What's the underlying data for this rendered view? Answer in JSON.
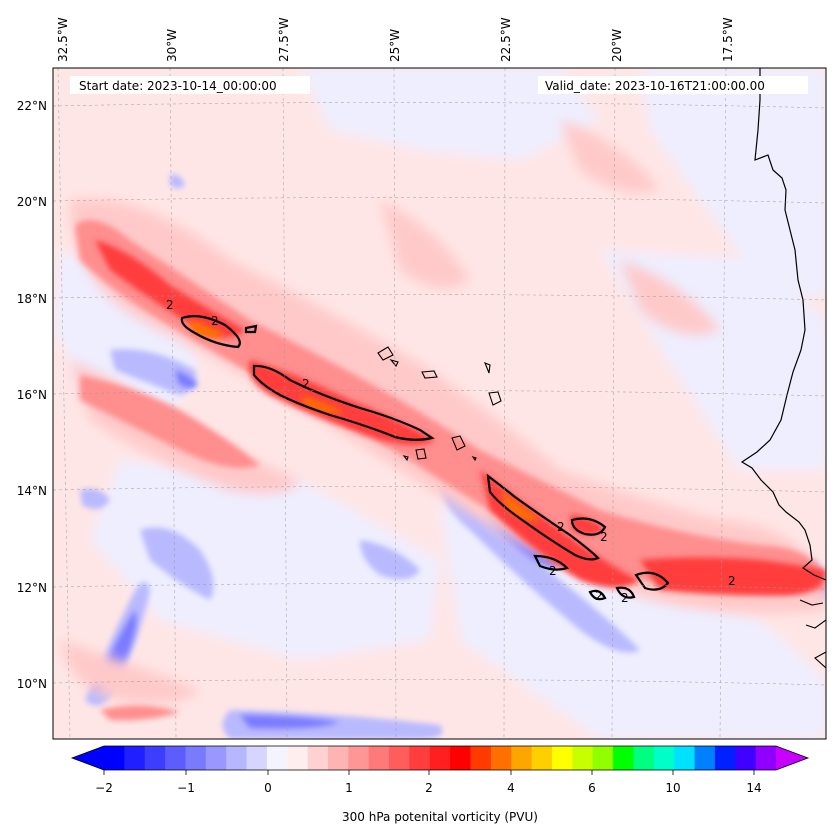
{
  "map": {
    "start_date_text": "Start date: 2023-10-14_00:00:00",
    "valid_date_text": "Valid_date: 2023-10-16T21:00:00.00",
    "lon_ticks": [
      "32.5°W",
      "30°W",
      "27.5°W",
      "25°W",
      "22.5°W",
      "20°W",
      "17.5°W"
    ],
    "lat_ticks": [
      "22°N",
      "20°N",
      "18°N",
      "16°N",
      "14°N",
      "12°N",
      "10°N"
    ],
    "contour_labels": [
      "2",
      "2",
      "2",
      "2",
      "2",
      "2",
      "2",
      "2",
      "2"
    ],
    "field_colors": {
      "background": "#ffe6e6",
      "light_red": "#ffc9c9",
      "mid_red": "#ff8e8e",
      "strong_red": "#ff4b4b",
      "core_red": "#ff1b1b",
      "core_orange": "#ff6f00",
      "light_blue": "#e6e6ff",
      "mid_blue": "#b3b3ff",
      "strong_blue": "#7a7aff",
      "coast": "#000000",
      "contour": "#000000"
    }
  },
  "colorbar": {
    "label": "300 hPa potenital vorticity (PVU)",
    "tick_labels": [
      "−2",
      "−1",
      "0",
      "1",
      "2",
      "4",
      "6",
      "10",
      "14"
    ],
    "colors": [
      "#0000ff",
      "#1f1fff",
      "#3d3dff",
      "#5c5cff",
      "#7a7aff",
      "#9898ff",
      "#b7b7ff",
      "#d5d5ff",
      "#f4f4ff",
      "#ffeeee",
      "#ffd1d1",
      "#ffb4b4",
      "#ff9696",
      "#ff7979",
      "#ff5c5c",
      "#ff3d3d",
      "#ff1f1f",
      "#ff0000",
      "#ff3b00",
      "#ff7000",
      "#ffa500",
      "#ffd000",
      "#ffff00",
      "#c8ff00",
      "#90ff00",
      "#00ff00",
      "#00ff80",
      "#00ffc8",
      "#00e0ff",
      "#0080ff",
      "#0020ff",
      "#4000ff",
      "#9000ff"
    ],
    "under_color": "#0000ff",
    "over_color": "#c800ff"
  }
}
